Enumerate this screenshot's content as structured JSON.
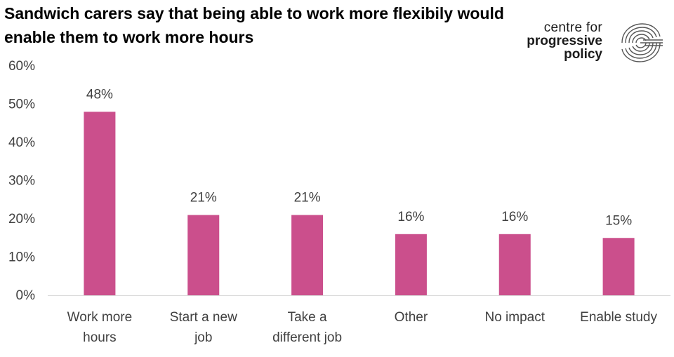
{
  "title": "Sandwich carers say that being able to work more flexibily would enable them to work more hours",
  "logo": {
    "line1": "centre for",
    "line2": "progressive",
    "line3": "policy"
  },
  "colors": {
    "bar": "#CB4F8C",
    "axis": "#D9D9D9",
    "text": "#404040"
  },
  "chart_data": {
    "type": "bar",
    "title": "Sandwich carers say that being able to work more flexibily would enable them to work more hours",
    "xlabel": "",
    "ylabel": "",
    "categories": [
      [
        "Work more",
        "hours"
      ],
      [
        "Start a new",
        "job"
      ],
      [
        "Take a",
        "different job"
      ],
      [
        "Other"
      ],
      [
        "No impact"
      ],
      [
        "Enable study"
      ]
    ],
    "values": [
      48,
      21,
      21,
      16,
      16,
      15
    ],
    "data_labels": [
      "48%",
      "21%",
      "21%",
      "16%",
      "16%",
      "15%"
    ],
    "ylim": [
      0,
      60
    ],
    "yticks": [
      0,
      10,
      20,
      30,
      40,
      50,
      60
    ],
    "ytick_labels": [
      "0%",
      "10%",
      "20%",
      "30%",
      "40%",
      "50%",
      "60%"
    ],
    "grid": false,
    "legend": "none"
  }
}
